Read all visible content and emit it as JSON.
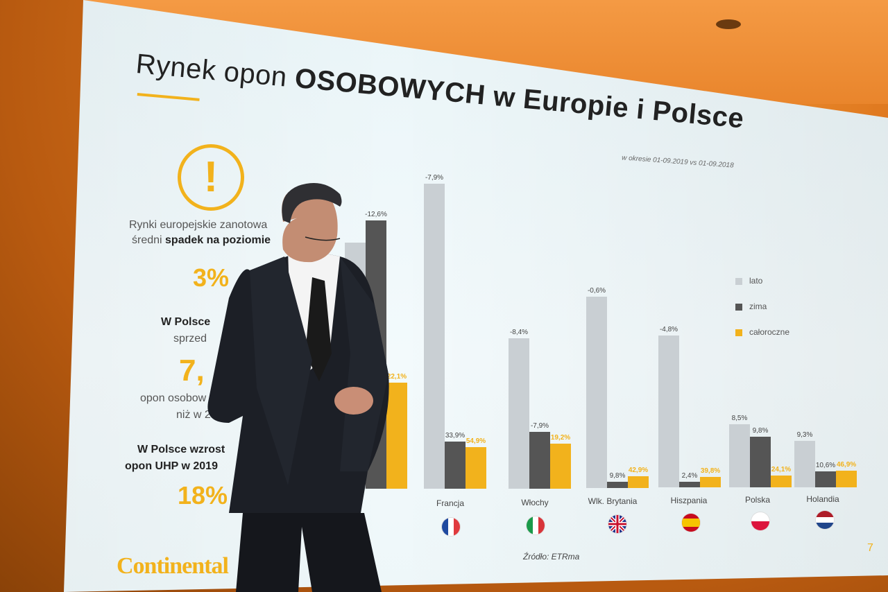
{
  "slide": {
    "title_light": "Rynek opon",
    "title_bold": "OSOBOWYCH w Europie i Polsce",
    "subtitle": "w okresie 01-09.2019 vs 01-09.2018",
    "left_text_1": "Rynki europejskie zanotowa",
    "left_text_2_pre": "średni",
    "left_text_2_bold": "spadek na poziomie",
    "big_1": "3%",
    "left_text_3": "W Polsce",
    "left_text_4": "sprzed",
    "big_2": "7,",
    "left_text_5": "opon osobow",
    "left_text_6": "niż w 2018",
    "left_text_7": "W Polsce wzrost",
    "left_text_8": "opon UHP w 2019",
    "big_3": "18%",
    "warning_glyph": "!",
    "source": "Źródło: ETRma",
    "page_number": "7",
    "logo_text": "Continental"
  },
  "chart_data": {
    "type": "bar",
    "categories": [
      "",
      "Francja",
      "Włochy",
      "Wlk. Brytania",
      "Hiszpania",
      "Polska",
      "Holandia"
    ],
    "series": [
      {
        "name": "lato",
        "color": "#c9cfd3",
        "labels": [
          "",
          "-7,9%",
          "-8,4%",
          "-0,6%",
          "-4,8%",
          "8,5%",
          "9,3%"
        ]
      },
      {
        "name": "zima",
        "color": "#555555",
        "labels": [
          "-12,6%",
          "33,9%",
          "-7,9%",
          "9,8%",
          "2,4%",
          "9,8%",
          "10,6%"
        ]
      },
      {
        "name": "całoroczne",
        "color": "#f2b21c",
        "labels": [
          "22,1%",
          "54,9%",
          "19,2%",
          "42,9%",
          "39,8%",
          "24,1%",
          "46,9%"
        ]
      }
    ],
    "flags": [
      "",
      "france",
      "italy",
      "uk",
      "spain",
      "poland",
      "netherlands"
    ]
  },
  "colors": {
    "accent": "#f2b21c",
    "screen": "#eef7f9",
    "stage": "#d9741c"
  }
}
